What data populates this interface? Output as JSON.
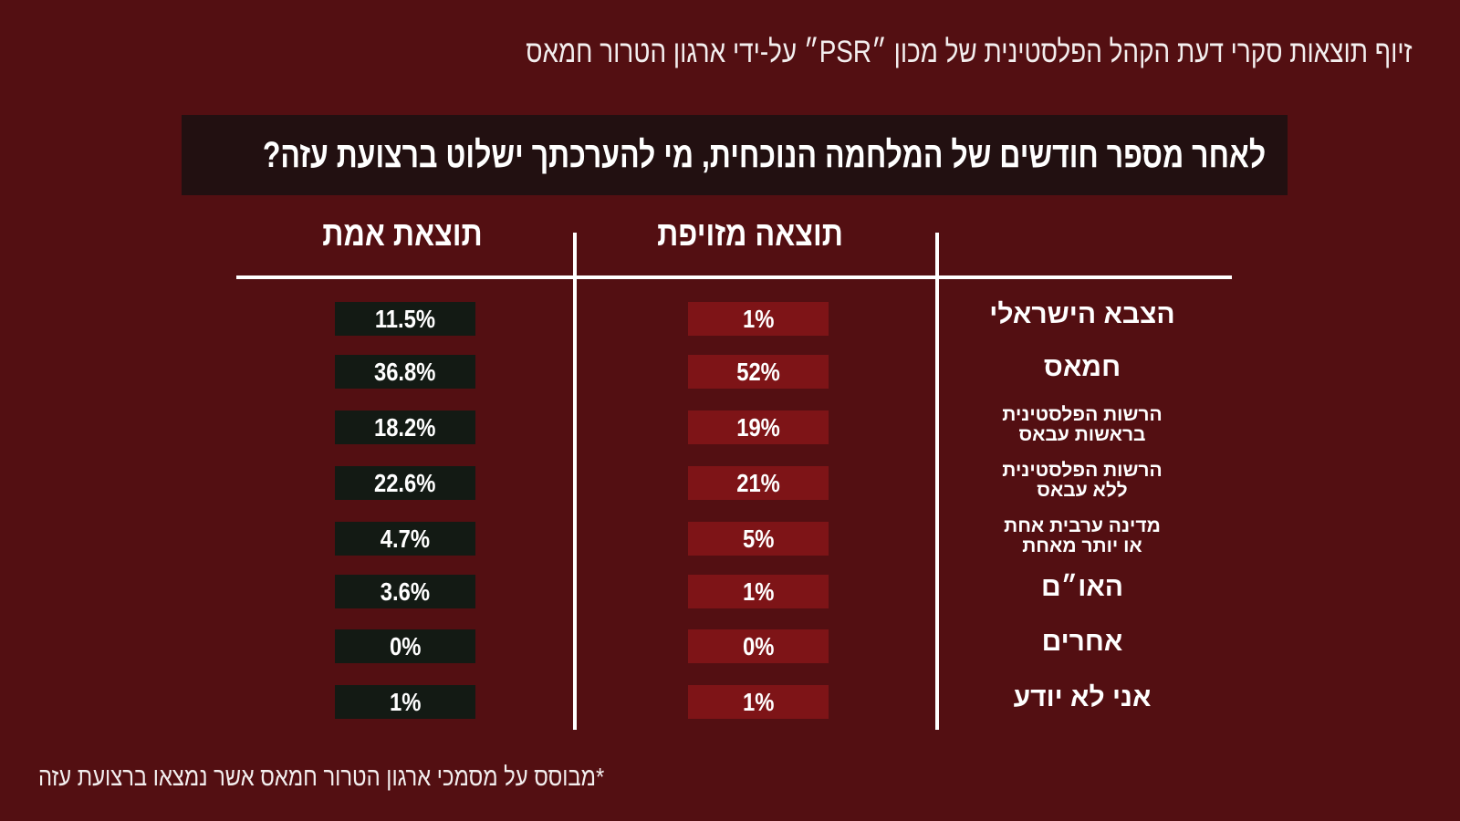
{
  "subtitle": "זיוף תוצאות סקרי דעת הקהל הפלסטינית של מכון ״PSR״ על-ידי ארגון הטרור חמאס",
  "question": "לאחר מספר חודשים של המלחמה הנוכחית, מי להערכתך ישלוט ברצועת עזה?",
  "footnote": "*מבוסס על מסמכי ארגון הטרור חמאס אשר נמצאו ברצועת עזה",
  "colors": {
    "background": "#530f12",
    "true_box": "#131a14",
    "fake_box": "#7e1417",
    "question_box": "#221011"
  },
  "chart_data": {
    "type": "table",
    "columns": [
      "תוצאת אמת",
      "תוצאה מזויפת"
    ],
    "rows": [
      {
        "label": [
          "הצבא הישראלי"
        ],
        "true": "11.5%",
        "fake": "1%"
      },
      {
        "label": [
          "חמאס"
        ],
        "true": "36.8%",
        "fake": "52%"
      },
      {
        "label": [
          "הרשות הפלסטינית",
          "בראשות עבאס"
        ],
        "true": "18.2%",
        "fake": "19%"
      },
      {
        "label": [
          "הרשות הפלסטינית",
          "ללא עבאס"
        ],
        "true": "22.6%",
        "fake": "21%"
      },
      {
        "label": [
          "מדינה ערבית אחת",
          "או יותר מאחת"
        ],
        "true": "4.7%",
        "fake": "5%"
      },
      {
        "label": [
          "האו״ם"
        ],
        "true": "3.6%",
        "fake": "1%"
      },
      {
        "label": [
          "אחרים"
        ],
        "true": "0%",
        "fake": "0%"
      },
      {
        "label": [
          "אני לא יודע"
        ],
        "true": "1%",
        "fake": "1%"
      }
    ]
  }
}
